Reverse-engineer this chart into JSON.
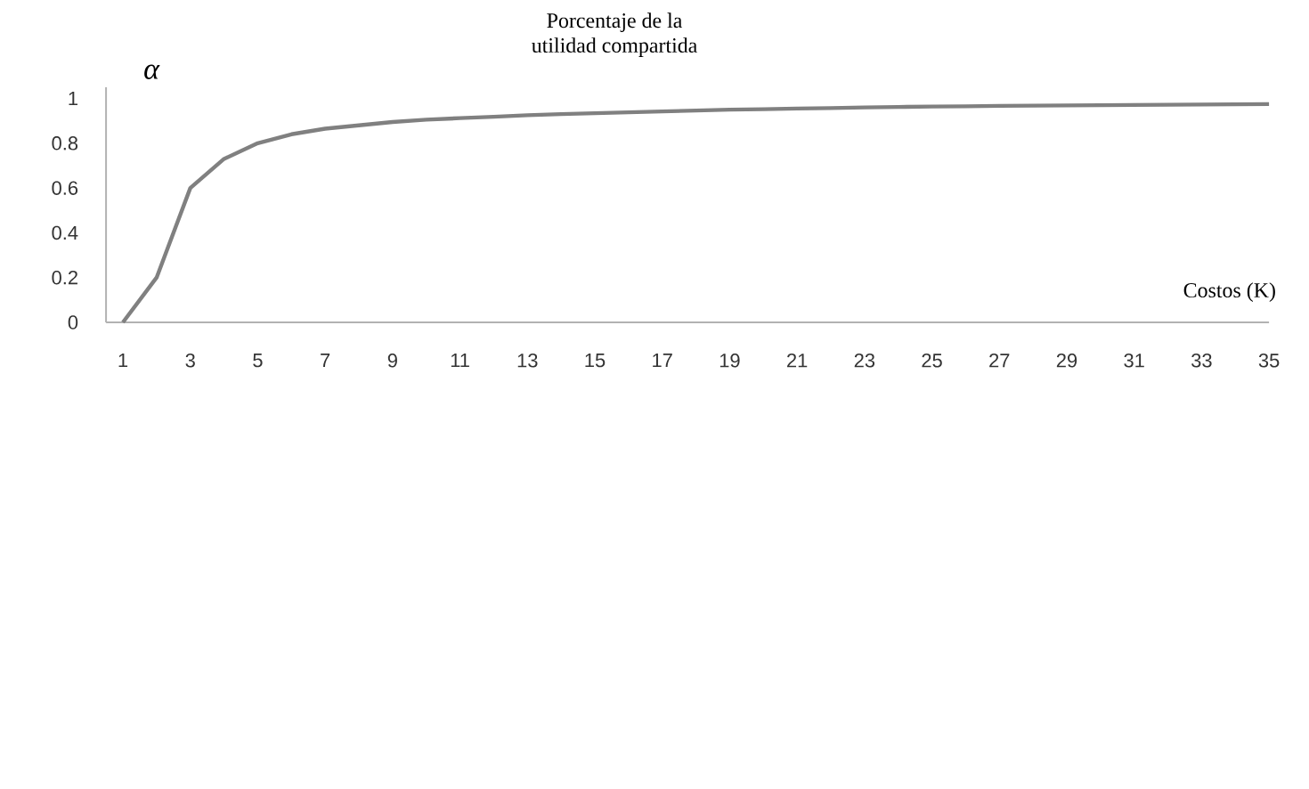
{
  "chart_data": {
    "type": "line",
    "title": "Porcentaje de la\nutilidad compartida",
    "xlabel": "Costos (K)",
    "ylabel": "α",
    "categories": [
      "1",
      null,
      "3",
      null,
      "5",
      null,
      "7",
      null,
      "9",
      null,
      "11",
      null,
      "13",
      null,
      "15",
      null,
      "17",
      null,
      "19",
      null,
      "21",
      null,
      "23",
      null,
      "25",
      null,
      "27",
      null,
      "29",
      null,
      "31",
      null,
      "33",
      null,
      "35"
    ],
    "series": [
      {
        "color": "#808080",
        "values": [
          0,
          0.2,
          0.6,
          0.73,
          0.8,
          0.84,
          0.865,
          0.88,
          0.895,
          0.905,
          0.912,
          0.918,
          0.925,
          0.93,
          0.934,
          0.938,
          0.942,
          0.946,
          0.95,
          0.952,
          0.955,
          0.957,
          0.96,
          0.962,
          0.964,
          0.965,
          0.967,
          0.968,
          0.969,
          0.97,
          0.971,
          0.972,
          0.973,
          0.974,
          0.975
        ]
      }
    ],
    "ylim": [
      0,
      1.05
    ],
    "yticks": [
      0,
      0.2,
      0.4,
      0.6,
      0.8,
      1
    ]
  }
}
